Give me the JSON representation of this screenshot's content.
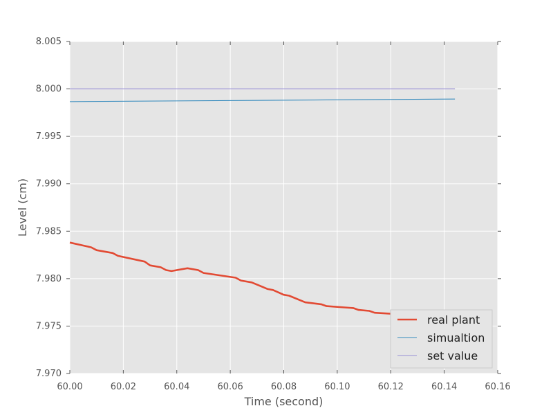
{
  "chart_data": {
    "type": "line",
    "title": "",
    "xlabel": "Time (second)",
    "ylabel": "Level (cm)",
    "xlim": [
      60.0,
      60.16
    ],
    "ylim": [
      7.97,
      8.005
    ],
    "x_ticks": [
      "60.00",
      "60.02",
      "60.04",
      "60.06",
      "60.08",
      "60.10",
      "60.12",
      "60.14",
      "60.16"
    ],
    "y_ticks": [
      "7.970",
      "7.975",
      "7.980",
      "7.985",
      "7.990",
      "7.995",
      "8.000",
      "8.005"
    ],
    "grid": true,
    "background": "#e5e5e5",
    "legend_position": "lower-right",
    "series": [
      {
        "name": "real plant",
        "color": "#e24a33",
        "line_width": "thick",
        "x": [
          60.0,
          60.008,
          60.01,
          60.016,
          60.018,
          60.028,
          60.03,
          60.034,
          60.036,
          60.038,
          60.044,
          60.048,
          60.05,
          60.062,
          60.064,
          60.068,
          60.074,
          60.076,
          60.08,
          60.082,
          60.088,
          60.094,
          60.096,
          60.106,
          60.108,
          60.112,
          60.114,
          60.12,
          60.128,
          60.144
        ],
        "y": [
          7.9838,
          7.9833,
          7.983,
          7.9827,
          7.9824,
          7.9818,
          7.9814,
          7.9812,
          7.9809,
          7.9808,
          7.9811,
          7.9809,
          7.9806,
          7.9801,
          7.9798,
          7.9796,
          7.9789,
          7.9788,
          7.9783,
          7.9782,
          7.9775,
          7.9773,
          7.9771,
          7.9769,
          7.9767,
          7.9766,
          7.9764,
          7.9763,
          7.976,
          7.9758
        ]
      },
      {
        "name": "simualtion",
        "color": "#348abd",
        "line_width": "thin",
        "x": [
          60.0,
          60.144
        ],
        "y": [
          7.99866,
          7.99893
        ]
      },
      {
        "name": "set value",
        "color": "#988ed5",
        "line_width": "thin",
        "x": [
          60.0,
          60.144
        ],
        "y": [
          8.0,
          8.0
        ]
      }
    ]
  }
}
